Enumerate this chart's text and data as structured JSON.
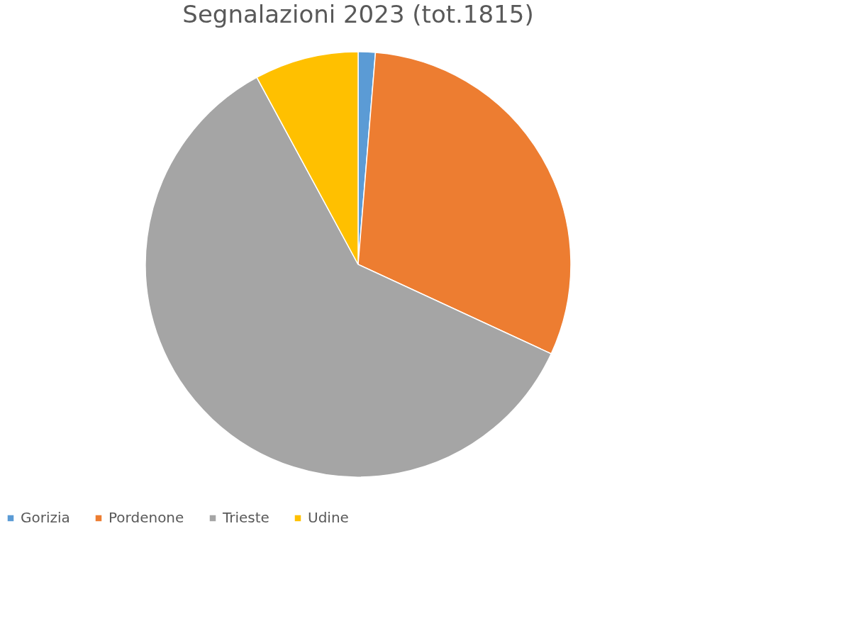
{
  "chart_data": {
    "type": "pie",
    "title": "Segnalazioni 2023 (tot.1815)",
    "categories": [
      "Gorizia",
      "Pordenone",
      "Trieste",
      "Udine"
    ],
    "values": [
      1.3,
      30.6,
      60.2,
      7.9
    ],
    "colors": [
      "#5b9bd5",
      "#ed7d31",
      "#a5a5a5",
      "#ffc000"
    ],
    "legend": "bottom"
  }
}
